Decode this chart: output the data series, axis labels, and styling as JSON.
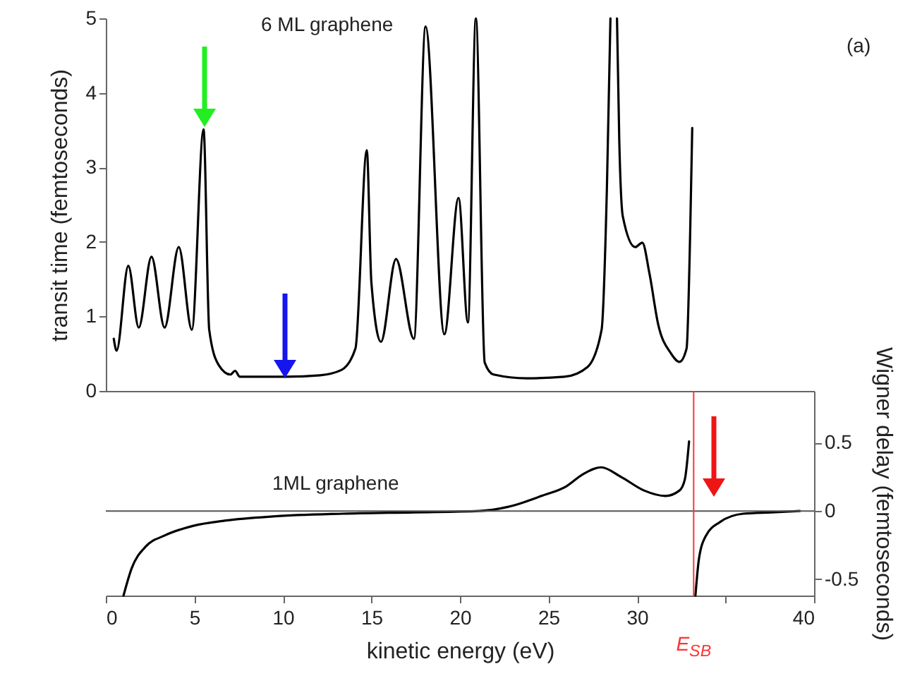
{
  "chart_data": [
    {
      "type": "line",
      "ylabel": "transit time (femtoseconds)",
      "xlim": [
        0,
        40
      ],
      "ylim": [
        0,
        5
      ],
      "yticks": [
        0,
        1,
        2,
        3,
        4,
        5
      ],
      "tick_labels": "y",
      "annotations": [
        "6 ML graphene",
        "(a)"
      ],
      "series": [
        {
          "color": "#000000",
          "x": [
            0.45,
            0.61,
            1.27,
            1.86,
            2.58,
            3.32,
            4.12,
            4.86,
            5.52,
            5.84,
            6.37,
            7.04,
            7.3,
            7.57,
            8.9,
            10.2,
            12.1,
            13.3,
            14.1,
            14.74,
            15.0,
            15.54,
            16.39,
            17.4,
            18.06,
            19.12,
            19.92,
            20.45,
            20.9,
            21.4,
            21.9,
            23.77,
            25.9,
            27.2,
            28.0,
            28.3,
            28.5,
            28.7,
            28.87,
            29.0,
            29.2,
            29.9,
            30.3,
            30.7,
            31.2,
            31.9,
            32.4,
            32.8,
            33.0,
            33.12
          ],
          "values": [
            0.7,
            0.54,
            1.68,
            0.85,
            1.8,
            0.85,
            1.93,
            0.82,
            3.51,
            0.82,
            0.35,
            0.22,
            0.27,
            0.19,
            0.19,
            0.19,
            0.21,
            0.28,
            0.57,
            3.23,
            1.45,
            0.66,
            1.77,
            0.7,
            4.89,
            0.76,
            2.59,
            0.92,
            5.0,
            0.38,
            0.22,
            0.17,
            0.19,
            0.32,
            0.82,
            2.72,
            5.0,
            null,
            5.0,
            3.35,
            2.34,
            1.93,
            1.99,
            1.58,
            0.89,
            0.51,
            0.39,
            0.57,
            2.09,
            3.53
          ]
        }
      ]
    },
    {
      "type": "line",
      "xlabel": "kinetic energy (eV)",
      "y2label": "Wigner delay (femtoseconds)",
      "xlim": [
        0,
        40
      ],
      "xticks": [
        0,
        5,
        10,
        15,
        20,
        25,
        30,
        {
          "value": 35,
          "label": null
        },
        40
      ],
      "y2lim": [
        -0.62,
        0.88
      ],
      "y2ticks": [
        -0.5,
        0,
        0.5
      ],
      "annotations": [
        "1ML graphene"
      ],
      "ref_lines": [
        {
          "axis": "y2",
          "value": 0,
          "color": "#555555"
        },
        {
          "axis": "x",
          "value": 33.2,
          "label": "E$_{SB}$",
          "color": "#ff3333"
        }
      ],
      "series": [
        {
          "color": "#000000",
          "axis": "y2",
          "x": [
            1.0,
            1.46,
            2.26,
            3.32,
            4.91,
            6.77,
            9.43,
            13.4,
            17.4,
            21.1,
            22.7,
            24.6,
            26.0,
            26.96,
            27.97,
            29.1,
            30.4,
            31.6,
            32.4,
            32.7,
            32.94,
            33.1,
            33.3,
            33.5,
            33.9,
            34.7,
            36.0,
            37.6,
            39.2
          ],
          "values": [
            -0.62,
            -0.42,
            -0.26,
            -0.18,
            -0.11,
            -0.07,
            -0.04,
            -0.02,
            -0.01,
            0,
            0.03,
            0.11,
            0.18,
            0.27,
            0.32,
            0.25,
            0.15,
            0.11,
            0.15,
            0.23,
            0.51,
            null,
            -0.62,
            -0.35,
            -0.18,
            -0.08,
            -0.02,
            -0.01,
            0
          ]
        }
      ]
    }
  ]
}
